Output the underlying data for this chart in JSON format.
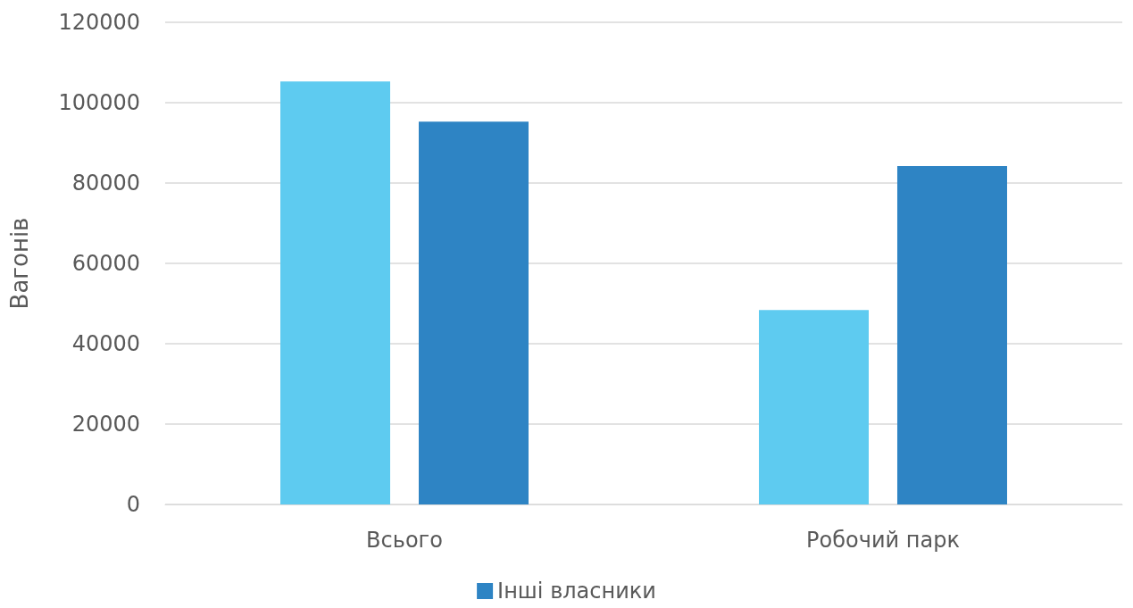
{
  "chart_data": {
    "type": "bar",
    "ylabel": "Вагонів",
    "categories": [
      "Всього",
      "Робочий парк"
    ],
    "series": [
      {
        "color": "#5ecbf0",
        "values": [
          105300,
          48400
        ]
      },
      {
        "name": "Інші власники",
        "color": "#2e84c4",
        "values": [
          95300,
          84200
        ]
      }
    ],
    "ylim": [
      0,
      120000
    ],
    "yticks": [
      0,
      20000,
      40000,
      60000,
      80000,
      100000,
      120000
    ],
    "grid": "y",
    "legend": "bottom"
  }
}
